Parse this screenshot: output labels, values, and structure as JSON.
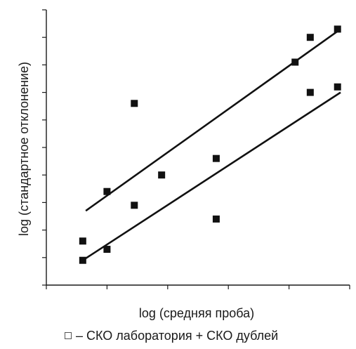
{
  "chart_data": {
    "type": "scatter",
    "xlabel": "log (средняя проба)",
    "ylabel": "log (стандартное отклонение)",
    "x_tick_count": 5,
    "y_tick_count": 10,
    "grid": false,
    "xlim": [
      0,
      1
    ],
    "ylim": [
      0,
      1
    ],
    "series": [
      {
        "name": "",
        "points": [
          {
            "x": 0.12,
            "y": 0.16
          },
          {
            "x": 0.2,
            "y": 0.34
          },
          {
            "x": 0.29,
            "y": 0.29
          },
          {
            "x": 0.29,
            "y": 0.66
          },
          {
            "x": 0.38,
            "y": 0.4
          },
          {
            "x": 0.56,
            "y": 0.46
          },
          {
            "x": 0.82,
            "y": 0.81
          },
          {
            "x": 0.87,
            "y": 0.9
          },
          {
            "x": 0.96,
            "y": 0.93
          }
        ],
        "trend": [
          [
            0.13,
            0.27
          ],
          [
            0.97,
            0.93
          ]
        ]
      },
      {
        "name": "",
        "points": [
          {
            "x": 0.12,
            "y": 0.09
          },
          {
            "x": 0.2,
            "y": 0.13
          },
          {
            "x": 0.56,
            "y": 0.24
          },
          {
            "x": 0.87,
            "y": 0.7
          },
          {
            "x": 0.96,
            "y": 0.72
          }
        ],
        "trend": [
          [
            0.12,
            0.09
          ],
          [
            0.97,
            0.7
          ]
        ]
      }
    ],
    "legend": {
      "position": "bottom",
      "marker": "open-square",
      "text": "– СКО лаборатория + СКО дублей"
    }
  }
}
